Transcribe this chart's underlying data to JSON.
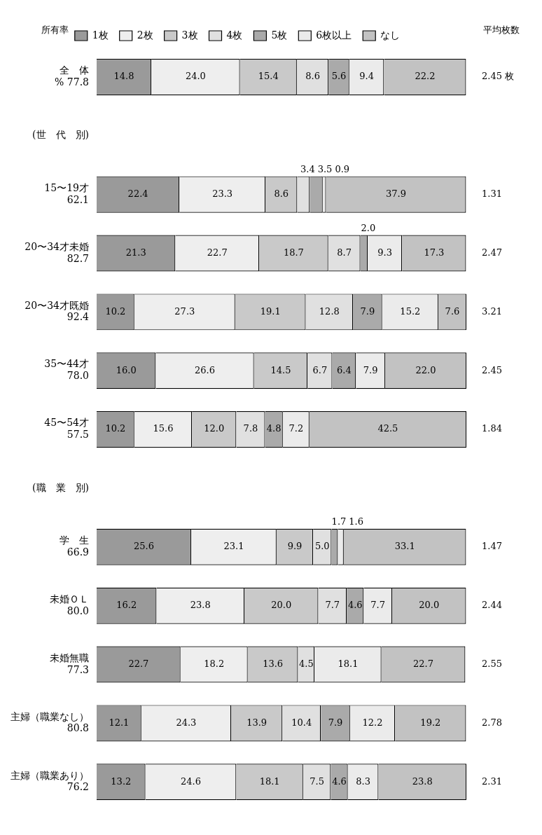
{
  "chart_data": {
    "type": "bar",
    "orientation": "horizontal",
    "stacked": true,
    "legend": "top",
    "categories": [
      "全　体\n% 77.8",
      "(世　代　別)",
      "15〜19才\n62.1",
      "20〜34才未婚\n82.7",
      "20〜34才既婚\n92.4",
      "35〜44才\n78.0",
      "45〜54才\n57.5",
      "(職　業　別)",
      "学　生\n66.9",
      "未婚ＯＬ\n80.0",
      "未婚無職\n77.3",
      "主婦（職業なし）\n80.8",
      "主婦（職業あり）\n76.2"
    ],
    "series": [
      {
        "name": "1枚",
        "color": "#9a9a9a",
        "values": [
          14.8,
          null,
          22.4,
          21.3,
          10.2,
          16.0,
          10.2,
          null,
          25.6,
          16.2,
          22.7,
          12.1,
          13.2
        ],
        "value_labels": [
          "14.8",
          null,
          "22.4",
          "21.3",
          "10.2",
          "16.0",
          "10.2",
          null,
          "25.6",
          "16.2",
          "22.7",
          "12.1",
          "13.2"
        ]
      },
      {
        "name": "2枚",
        "color": "#eeeeee",
        "values": [
          24.0,
          null,
          23.3,
          22.7,
          27.3,
          26.6,
          15.6,
          null,
          23.1,
          23.8,
          18.2,
          24.3,
          24.6
        ],
        "value_labels": [
          "24.0",
          null,
          "23.3",
          "22.7",
          "27.3",
          "26.6",
          "15.6",
          null,
          "23.1",
          "23.8",
          "18.2",
          "24.3",
          "24.6"
        ]
      },
      {
        "name": "3枚",
        "color": "#c9c9c9",
        "values": [
          15.4,
          null,
          8.6,
          18.7,
          19.1,
          14.5,
          12.0,
          null,
          9.9,
          20.0,
          13.6,
          13.9,
          18.1
        ],
        "value_labels": [
          "15.4",
          null,
          "8.6",
          "18.7",
          "19.1",
          "14.5",
          "12.0",
          null,
          "9.9",
          "20.0",
          "13.6",
          "13.9",
          "18.1"
        ]
      },
      {
        "name": "4枚",
        "color": "#e0e0e0",
        "values": [
          8.6,
          null,
          3.4,
          8.7,
          12.8,
          6.7,
          7.8,
          null,
          5.0,
          7.7,
          4.5,
          10.4,
          7.5
        ],
        "value_labels": [
          "8.6",
          null,
          "3.4",
          "8.7",
          "12.8",
          "6.7",
          "7.8",
          null,
          "5.0",
          "7.7",
          "4.5",
          "10.4",
          "7.5"
        ]
      },
      {
        "name": "5枚",
        "color": "#aaaaaa",
        "values": [
          5.6,
          null,
          3.5,
          2.0,
          7.9,
          6.4,
          4.8,
          null,
          1.7,
          4.6,
          0,
          7.9,
          4.6
        ],
        "value_labels": [
          "5.6",
          null,
          "3.5",
          "2.0",
          "7.9",
          "6.4",
          "4.8",
          null,
          "1.7",
          "4.6",
          null,
          "7.9",
          "4.6"
        ]
      },
      {
        "name": "6枚以上",
        "color": "#ebebeb",
        "values": [
          9.4,
          null,
          0.9,
          9.3,
          15.2,
          7.9,
          7.2,
          null,
          1.6,
          7.7,
          18.1,
          12.2,
          8.3
        ],
        "value_labels": [
          "9.4",
          null,
          "0.9",
          "9.3",
          "15.2",
          "7.9",
          "7.2",
          null,
          "1.6",
          "7.7",
          "18.1",
          "12.2",
          "8.3"
        ]
      },
      {
        "name": "なし",
        "color": "#c2c2c2",
        "values": [
          22.2,
          null,
          37.9,
          17.3,
          7.6,
          22.0,
          42.5,
          null,
          33.1,
          20.0,
          22.7,
          19.2,
          23.8
        ],
        "value_labels": [
          "22.2",
          null,
          "37.9",
          "17.3",
          "7.6",
          "22.0",
          "42.5",
          null,
          "33.1",
          "20.0",
          "22.7",
          "19.2",
          "23.8"
        ]
      }
    ],
    "annotations": [
      "所有率",
      "平均枚数",
      "2.45 枚",
      "1.31",
      "2.47",
      "3.21",
      "2.45",
      "1.84",
      "1.47",
      "2.44",
      "2.55",
      "2.78",
      "2.31"
    ]
  }
}
